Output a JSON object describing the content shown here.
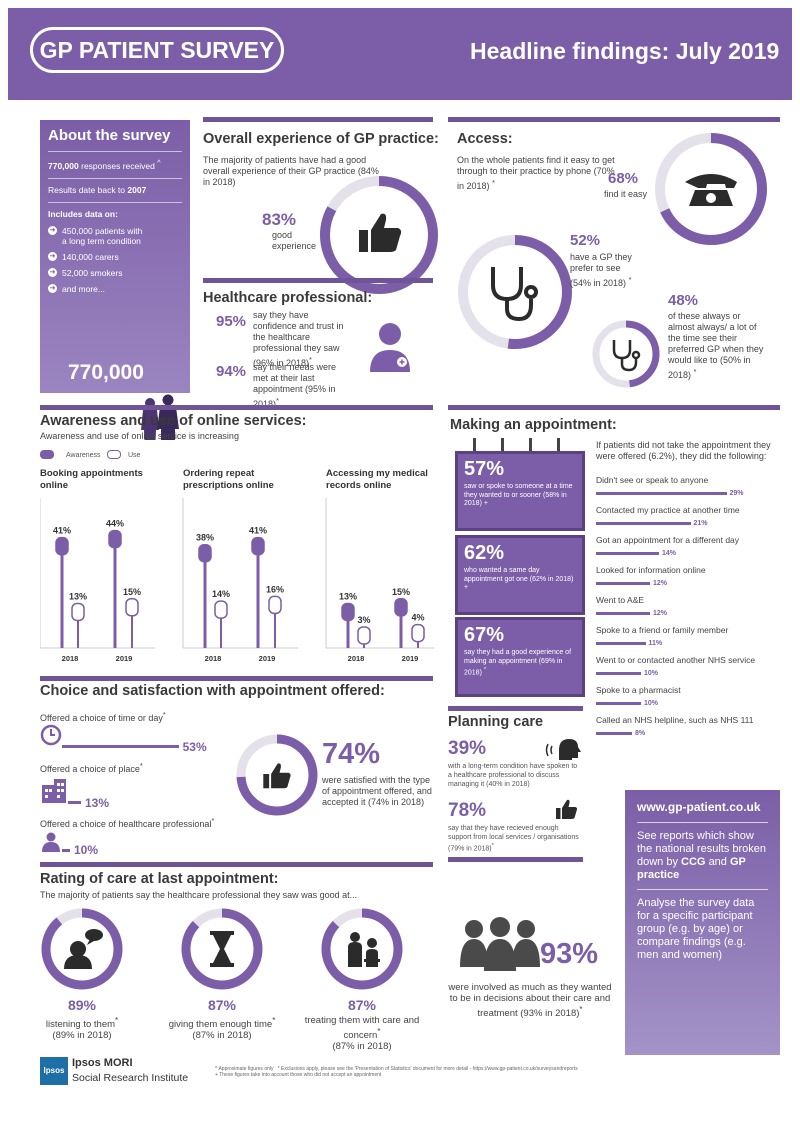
{
  "header": {
    "logo": "GP PATIENT SURVEY",
    "title": "Headline findings: July 2019"
  },
  "about": {
    "title": "About the survey",
    "responses_num": "770,000",
    "responses_text": "responses received",
    "responses_mark": "^",
    "results": "Results date back to",
    "results_year": "2007",
    "includes": "Includes data on:",
    "items": [
      "450,000 patients with a long term condition",
      "140,000 carers",
      "52,000 smokers",
      "and more..."
    ],
    "big": "770,000"
  },
  "overall": {
    "title": "Overall experience of GP practice:",
    "desc": "The majority of patients have had a good overall experience of their GP practice (84% in 2018)",
    "pct": "83%",
    "label": "good experience",
    "value": 83
  },
  "hcp": {
    "title": "Healthcare professional:",
    "pct1": "95%",
    "text1": "say they have confidence and trust in the healthcare professional they saw (96% in 2018)",
    "mark1": "*",
    "pct2": "94%",
    "text2": "say their needs were met at their last appointment (95% in 2018)",
    "mark2": "*"
  },
  "access": {
    "title": "Access:",
    "desc": "On the whole patients find it easy to get through to their practice by phone (70% in 2018)",
    "desc_mark": "*",
    "pct1": "68%",
    "label1": "find it easy",
    "value1": 68,
    "pct2": "52%",
    "text2": "have a GP they prefer to see (54% in 2018)",
    "mark2": "*",
    "value2": 52,
    "pct3": "48%",
    "text3": "of these always or almost always/ a lot of the time see their preferred GP when they would like to (50% in 2018)",
    "mark3": "*",
    "value3": 48
  },
  "online": {
    "title": "Awareness and use of online services:",
    "sub": "Awareness and use of online service is increasing",
    "legend_awareness": "Awareness",
    "legend_use": "Use",
    "groups": [
      {
        "title": "Booking appointments online",
        "a2018": "41%",
        "u2018": "13%",
        "a2019": "44%",
        "u2019": "15%",
        "va2018": 41,
        "vu2018": 13,
        "va2019": 44,
        "vu2019": 15
      },
      {
        "title": "Ordering repeat prescriptions online",
        "a2018": "38%",
        "u2018": "14%",
        "a2019": "41%",
        "u2019": "16%",
        "va2018": 38,
        "vu2018": 14,
        "va2019": 41,
        "vu2019": 16
      },
      {
        "title": "Accessing my medical records online",
        "a2018": "13%",
        "u2018": "3%",
        "a2019": "15%",
        "u2019": "4%",
        "va2018": 13,
        "vu2018": 3,
        "va2019": 15,
        "vu2019": 4
      }
    ],
    "year1": "2018",
    "year2": "2019"
  },
  "appointment": {
    "title": "Making an appointment:",
    "boxes": [
      {
        "pct": "57%",
        "text": "saw or spoke to someone at a time they wanted to or sooner (58% in 2018) +"
      },
      {
        "pct": "62%",
        "text": "who wanted a same day appointment got one (62% in 2018) +"
      },
      {
        "pct": "67%",
        "text": "say they had a good experience of making an appointment (69% in 2018)",
        "mark": "*"
      }
    ],
    "intro": "If patients did not take the appointment they were offered (6.2%), they did the following:",
    "bars": [
      {
        "label": "Didn't see or speak to anyone",
        "pct": "29%",
        "v": 29
      },
      {
        "label": "Contacted my practice at another time",
        "pct": "21%",
        "v": 21
      },
      {
        "label": "Got an appointment for a different day",
        "pct": "14%",
        "v": 14
      },
      {
        "label": "Looked for information online",
        "pct": "12%",
        "v": 12
      },
      {
        "label": "Went to A&E",
        "pct": "12%",
        "v": 12
      },
      {
        "label": "Spoke to a friend or family member",
        "pct": "11%",
        "v": 11
      },
      {
        "label": "Went to or contacted another NHS service",
        "pct": "10%",
        "v": 10
      },
      {
        "label": "Spoke to a pharmacist",
        "pct": "10%",
        "v": 10
      },
      {
        "label": "Called an NHS helpline, such as NHS 111",
        "pct": "8%",
        "v": 8
      }
    ]
  },
  "choice": {
    "title": "Choice and satisfaction with appointment offered:",
    "time": "Offered a choice of time or day",
    "time_mark": "*",
    "time_pct": "53%",
    "time_v": 53,
    "place": "Offered a choice of place",
    "place_mark": "*",
    "place_pct": "13%",
    "place_v": 13,
    "hcp": "Offered a choice of healthcare professional",
    "hcp_mark": "*",
    "hcp_pct": "10%",
    "hcp_v": 10,
    "sat_pct": "74%",
    "sat_text": "were satisfied with the type of appointment offered, and accepted it (74% in 2018)",
    "sat_v": 74
  },
  "planning": {
    "title": "Planning care",
    "pct1": "39%",
    "text1": "with a long-term condition have spoken to a healthcare professional to discuss managing it (40% in 2018)",
    "pct2": "78%",
    "text2": "say that they have recieved enough support from local services / organisations (79% in 2018)",
    "mark2": "*"
  },
  "web": {
    "url": "www.gp-patient.co.uk",
    "t1a": "See reports which show the national results broken down by",
    "t1b": "CCG",
    "t1c": "and",
    "t1d": "GP practice",
    "t2": "Analyse the survey data for a specific participant group (e.g. by age) or compare findings (e.g. men and women)"
  },
  "rating": {
    "title": "Rating of care at last appointment:",
    "sub": "The majority of patients say the healthcare professional they saw was good at...",
    "items": [
      {
        "pct": "89%",
        "label": "listening to them",
        "mark": "*",
        "prev": "(89% in 2018)",
        "v": 89
      },
      {
        "pct": "87%",
        "label": "giving them enough time",
        "mark": "*",
        "prev": "(87% in 2018)",
        "v": 87
      },
      {
        "pct": "87%",
        "label": "treating them with care and concern",
        "mark": "*",
        "prev": "(87% in 2018)",
        "v": 87
      }
    ],
    "decisions_pct": "93%",
    "decisions_text": "were involved as much as they wanted to be in decisions about their care and treatment (93% in 2018)",
    "decisions_mark": "*"
  },
  "footer": {
    "brand": "Ipsos MORI",
    "brand_sub": "Social Research Institute",
    "badge": "Ipsos",
    "note1": "^ Approximate figures only",
    "note2": "* Exclusions apply, please see the 'Presentation of Statistics' document for more detail - https://www.gp-patient.co.uk/surveysandreports",
    "note3": "+ These figures take into account those who did not accept an appointment"
  },
  "colors": {
    "accent": "#7b5ea7",
    "track": "#e4e1ea",
    "dark": "#3d3d3d"
  }
}
